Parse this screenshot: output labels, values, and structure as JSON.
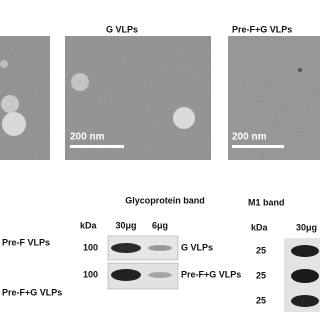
{
  "em_images": [
    {
      "label": "G VLPs",
      "scale_bar": "200 nm"
    },
    {
      "label": "Pre-F+G VLPs",
      "scale_bar": "200 nm"
    }
  ],
  "row_labels": [
    "Pre-F VLPs",
    "Pre-F+G VLPs"
  ],
  "glycoprotein_blot": {
    "title": "Glycoprotein band",
    "unit_header": "kDa",
    "lanes": [
      "30μg",
      "6μg"
    ],
    "rows": [
      {
        "kda": 100,
        "label": "G VLPs"
      },
      {
        "kda": 100,
        "label": "Pre-F+G VLPs"
      }
    ]
  },
  "m1_blot": {
    "title": "M1 band",
    "unit_header": "kDa",
    "lanes": [
      "30μg"
    ],
    "markers": [
      25,
      25,
      25
    ]
  }
}
